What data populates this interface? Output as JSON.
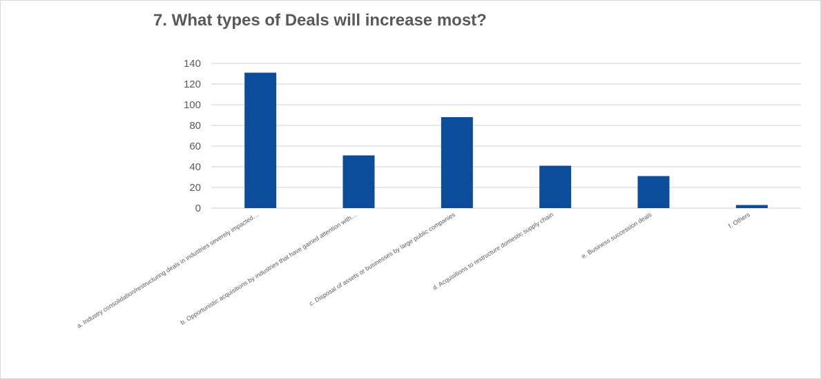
{
  "chart_data": {
    "type": "bar",
    "title": "7. What types of Deals will increase most?",
    "categories": [
      "a. Industry consolidation/restructuring deals in industries severely impacted…",
      "b. Opportunistic acquisitions by industries that have gained attention with…",
      "c. Disposal of assets or businesses by large public companies",
      "d. Acquisitions to restructure domestic supply chain",
      "e. Business succession deals",
      "f.  Others"
    ],
    "values": [
      131,
      51,
      88,
      41,
      31,
      3
    ],
    "ylim": [
      0,
      140
    ],
    "yticks": [
      0,
      20,
      40,
      60,
      80,
      100,
      120,
      140
    ],
    "xlabel": "",
    "ylabel": "",
    "grid": true,
    "bar_color": "#0b4d9a",
    "grid_color": "#d9d9d9",
    "text_color": "#595959"
  }
}
